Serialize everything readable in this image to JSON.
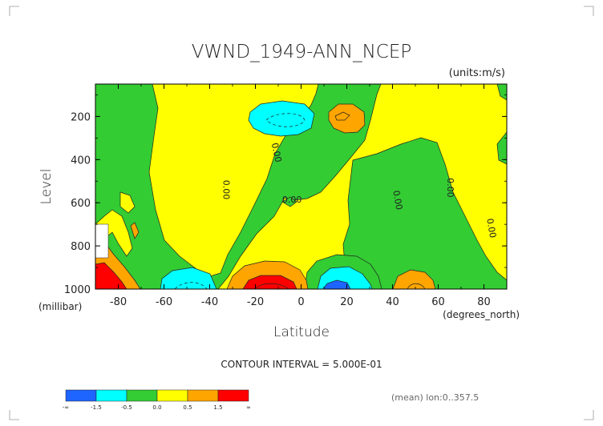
{
  "chart_data": {
    "type": "contour",
    "title": "VWND_1949-ANN_NCEP",
    "units_label": "(units:m/s)",
    "xlabel": "Latitude",
    "x_units_label": "(degrees_north)",
    "ylabel": "Level",
    "y_units_label": "(millibar)",
    "xlim": [
      -90,
      90
    ],
    "ylim": [
      1000,
      50
    ],
    "y_inverted": true,
    "x_ticks": [
      -80,
      -60,
      -40,
      -20,
      0,
      20,
      40,
      60,
      80
    ],
    "y_ticks": [
      200,
      400,
      600,
      800,
      1000
    ],
    "contour_interval_text": "CONTOUR INTERVAL = 5.000E-01",
    "footer_text": "(mean) lon:0..357.5",
    "contour_labels": [
      {
        "text": "0.00",
        "lat": -34,
        "level": 540,
        "angle": -90
      },
      {
        "text": "0.00",
        "lat": -12,
        "level": 370,
        "angle": -78
      },
      {
        "text": "0.00",
        "lat": -4,
        "level": 600,
        "angle": 0
      },
      {
        "text": "0.00",
        "lat": 41,
        "level": 590,
        "angle": -80
      },
      {
        "text": "0.00",
        "lat": 64,
        "level": 530,
        "angle": -90
      },
      {
        "text": "0.00",
        "lat": 82,
        "level": 720,
        "angle": -80
      }
    ],
    "colorbar": {
      "colors": [
        "#1e64ff",
        "#00ffff",
        "#33cc33",
        "#ffff00",
        "#ffa500",
        "#ff0000"
      ],
      "tick_labels": [
        "-∞",
        "-1.5",
        "-0.5",
        "0.0",
        "0.5",
        "1.5",
        "∞"
      ]
    }
  }
}
